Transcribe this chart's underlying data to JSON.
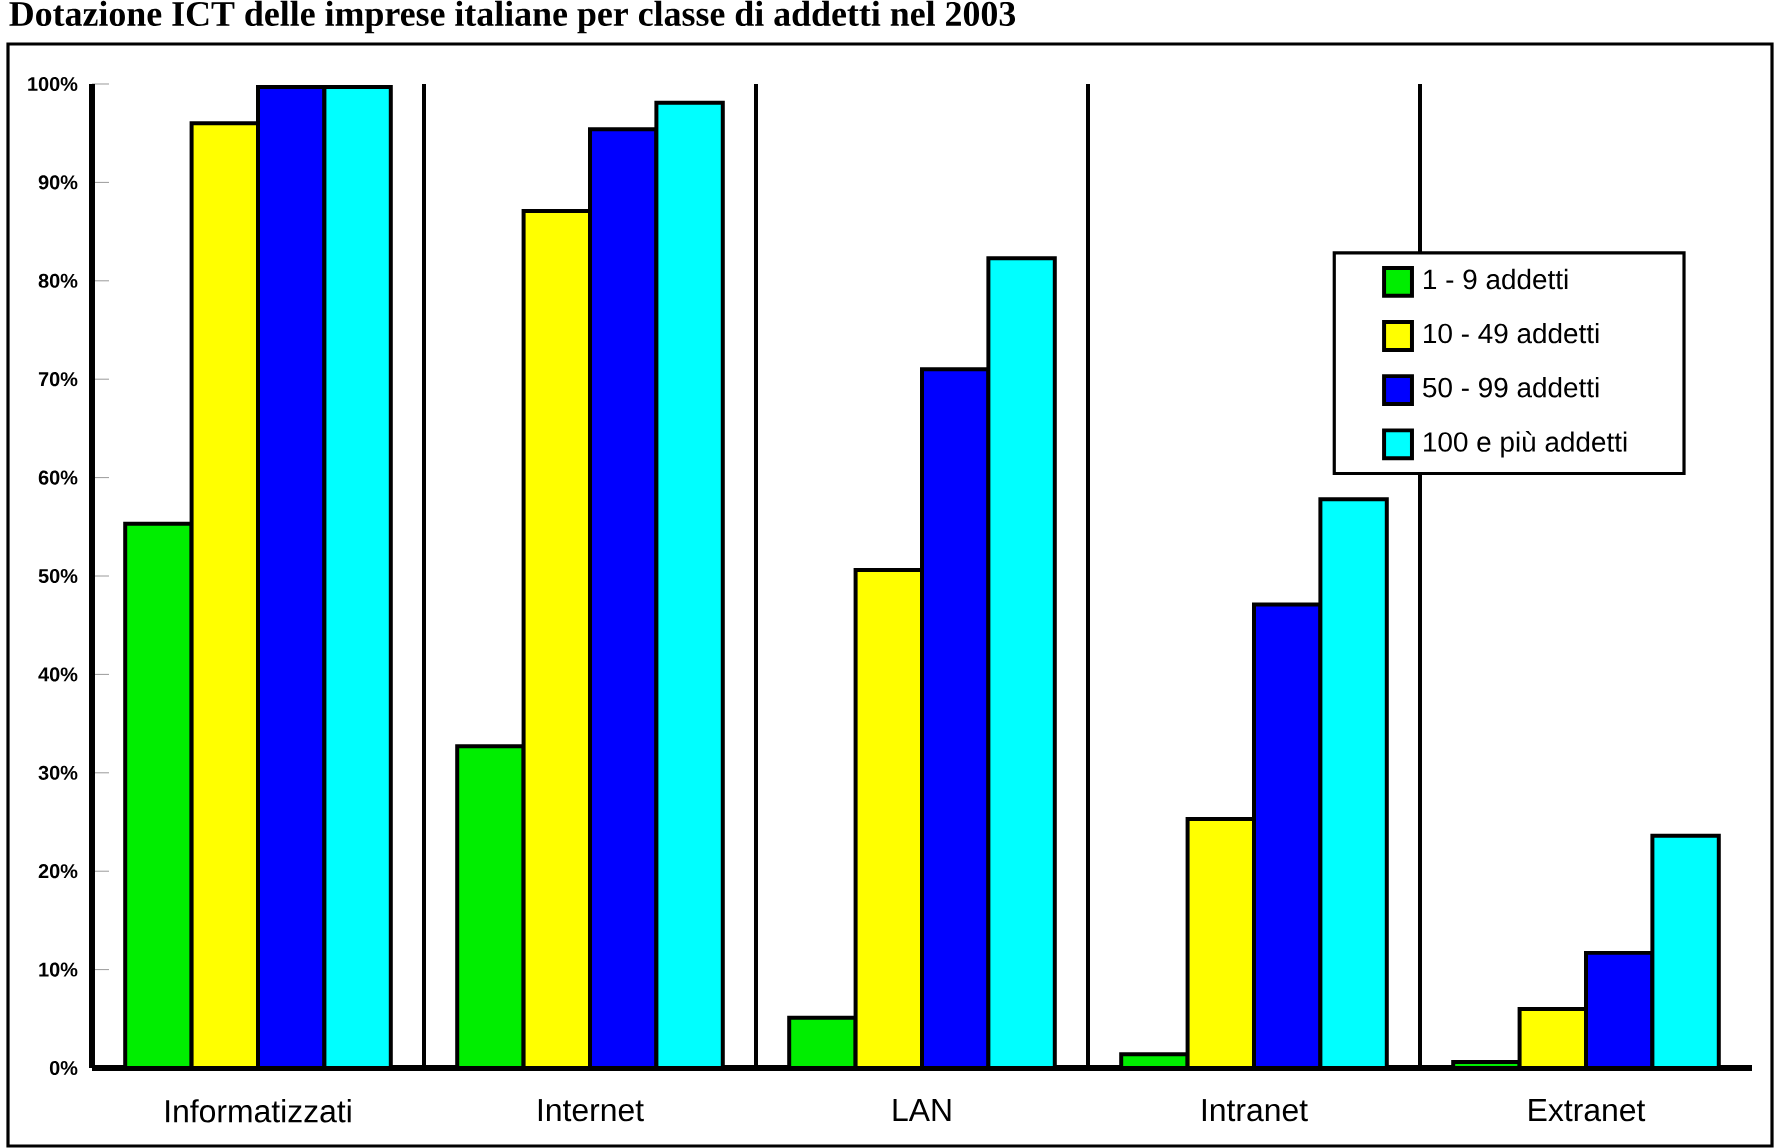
{
  "chart_data": {
    "type": "bar",
    "title": "Dotazione ICT delle imprese italiane per classe di addetti nel 2003",
    "categories": [
      "Informatizzati",
      "Internet",
      "LAN",
      "Intranet",
      "Extranet"
    ],
    "series": [
      {
        "name": "1 - 9 addetti",
        "color": "#00ee00",
        "values": [
          55.3,
          32.7,
          5.1,
          1.4,
          0.6
        ]
      },
      {
        "name": "10 - 49 addetti",
        "color": "#ffff00",
        "values": [
          96,
          87.1,
          50.6,
          25.3,
          6
        ]
      },
      {
        "name": "50 - 99 addetti",
        "color": "#0000ff",
        "values": [
          99.7,
          95.4,
          71,
          47.1,
          11.7
        ]
      },
      {
        "name": "100 e più addetti",
        "color": "#00ffff",
        "values": [
          99.7,
          98.1,
          82.3,
          57.8,
          23.6
        ]
      }
    ],
    "ylim": [
      0,
      100
    ],
    "yticks": [
      {
        "value": 0,
        "label": "0%"
      },
      {
        "value": 10,
        "label": "10%"
      },
      {
        "value": 20,
        "label": "20%"
      },
      {
        "value": 30,
        "label": "30%"
      },
      {
        "value": 40,
        "label": "40%"
      },
      {
        "value": 50,
        "label": "50%"
      },
      {
        "value": 60,
        "label": "60%"
      },
      {
        "value": 70,
        "label": "70%"
      },
      {
        "value": 80,
        "label": "80%"
      },
      {
        "value": 90,
        "label": "90%"
      },
      {
        "value": 100,
        "label": "100%"
      }
    ],
    "grid": "x",
    "legend": "top right"
  }
}
